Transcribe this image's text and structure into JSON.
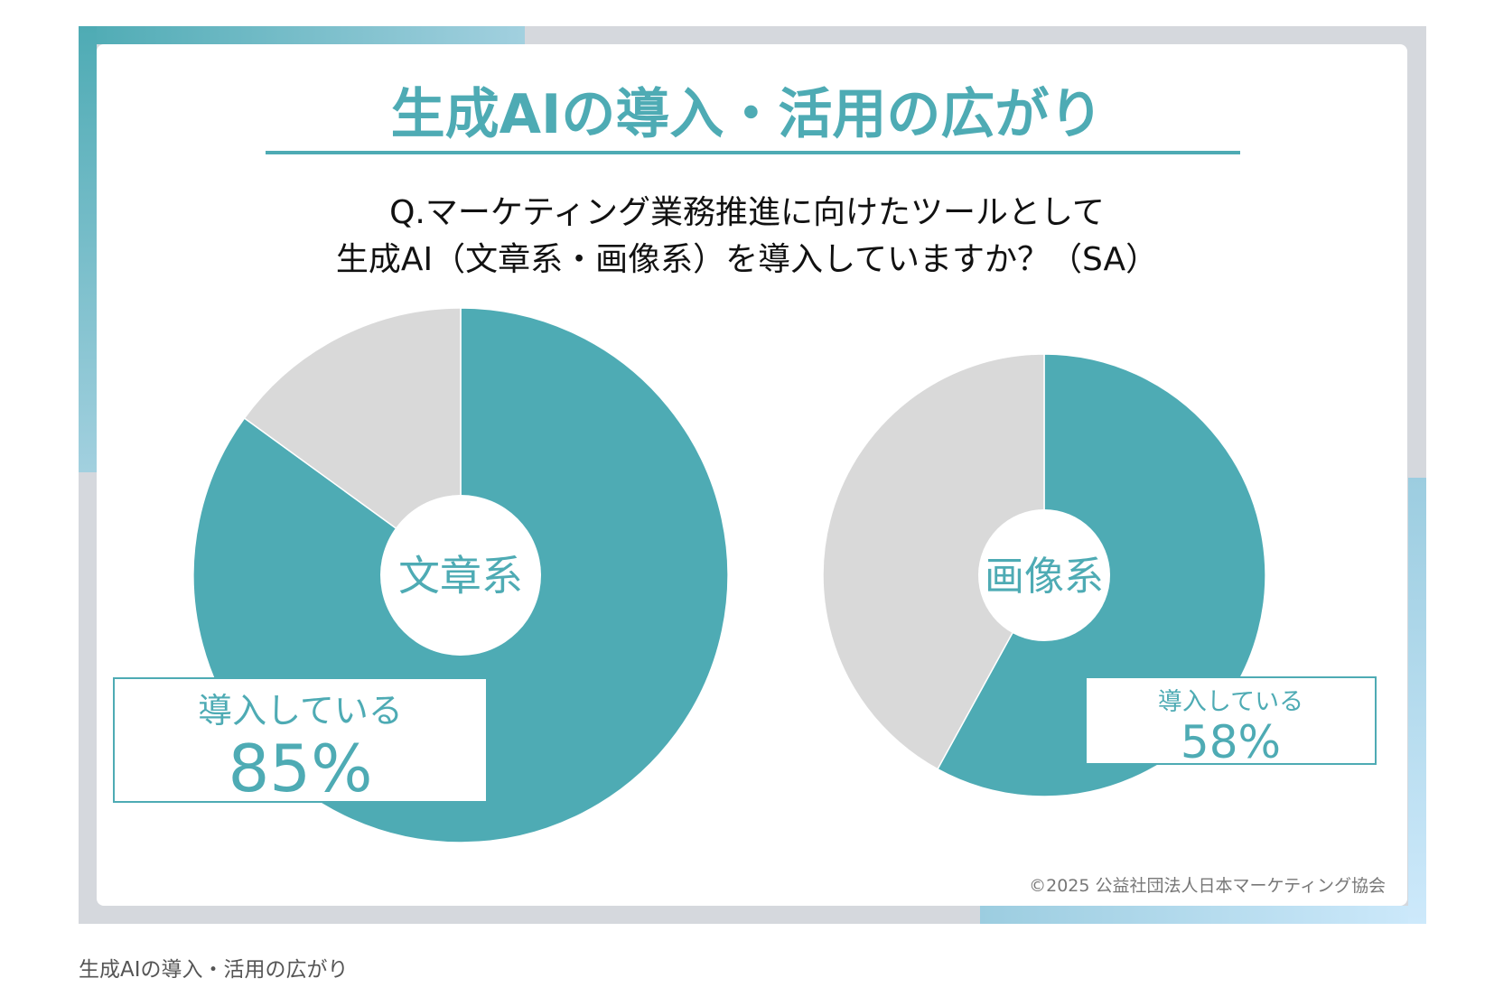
{
  "title": "生成AIの導入・活用の広がり",
  "question_line1": "Q.マーケティング業務推進に向けたツールとして",
  "question_line2": "生成AI（文章系・画像系）を導入していますか？（SA）",
  "copyright": "©2025 公益社団法人日本マーケティング協会",
  "caption": "生成AIの導入・活用の広がり",
  "colors": {
    "accent": "#4eabb4",
    "rest": "#d9d9d9"
  },
  "chart_data": [
    {
      "type": "pie",
      "center_label": "文章系",
      "slices": [
        {
          "label": "導入している",
          "value": 85
        },
        {
          "value": 15
        }
      ],
      "data_label": {
        "label": "導入している",
        "value": "85%"
      }
    },
    {
      "type": "pie",
      "center_label": "画像系",
      "slices": [
        {
          "label": "導入している",
          "value": 58
        },
        {
          "value": 42
        }
      ],
      "data_label": {
        "label": "導入している",
        "value": "58%"
      }
    }
  ]
}
